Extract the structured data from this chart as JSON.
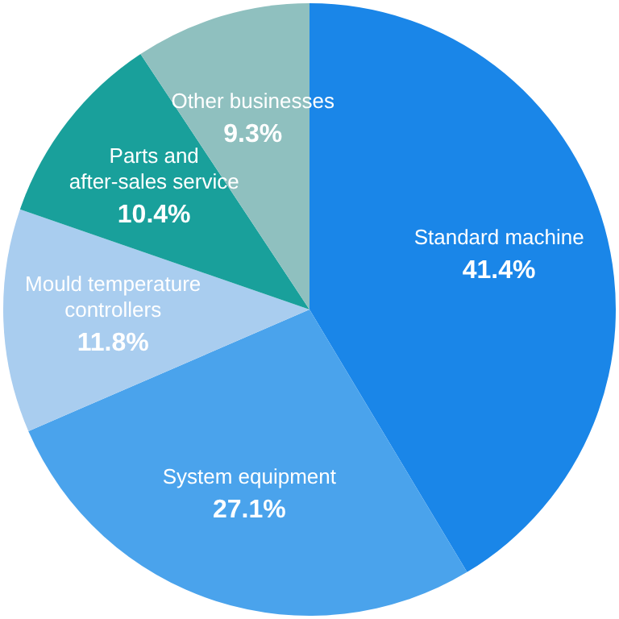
{
  "chart_data": {
    "type": "pie",
    "categories": [
      "Standard machine",
      "System equipment",
      "Mould temperature\ncontrollers",
      "Parts and\nafter-sales service",
      "Other businesses"
    ],
    "values": [
      41.4,
      27.1,
      11.8,
      10.4,
      9.3
    ],
    "value_labels": [
      "41.4%",
      "27.1%",
      "11.8%",
      "10.4%",
      "9.3%"
    ],
    "colors": [
      "#1a86e8",
      "#4aa3ec",
      "#a9cdef",
      "#19a09b",
      "#8fc0bf"
    ]
  }
}
